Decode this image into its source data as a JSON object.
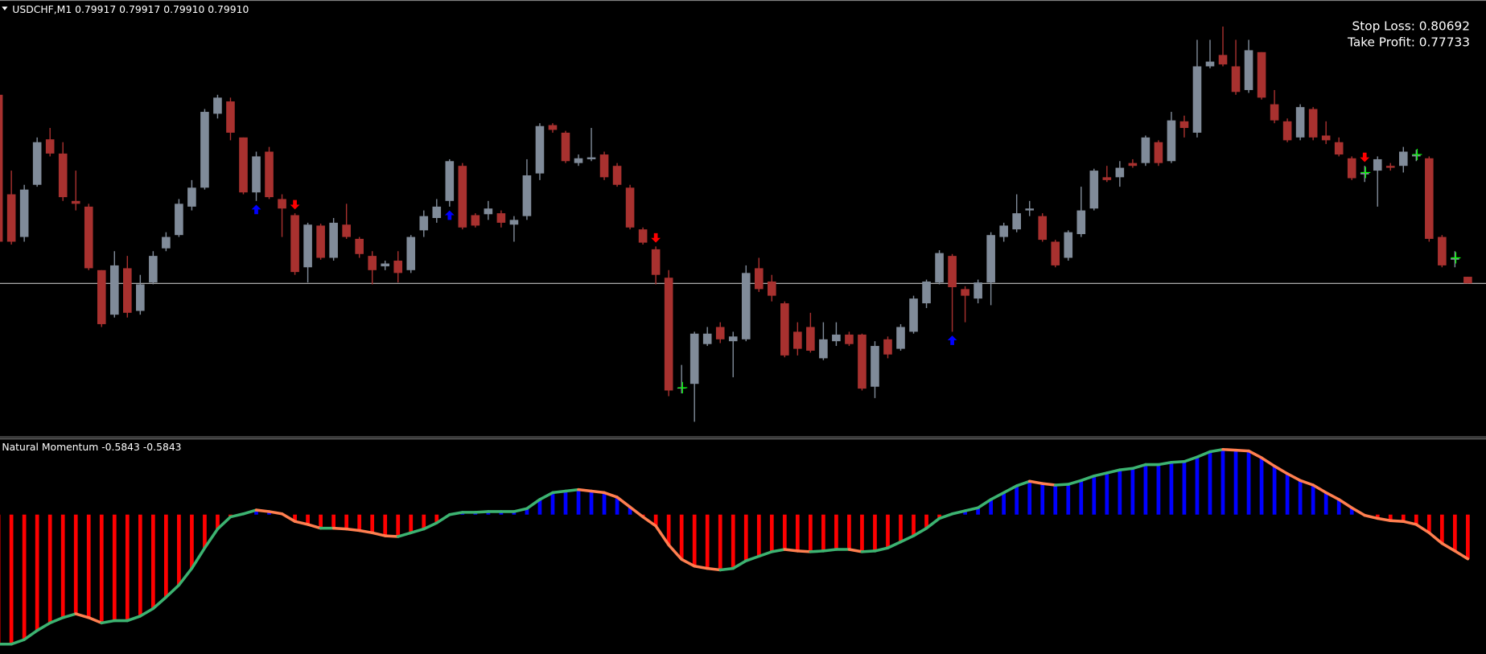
{
  "chart_data": [
    {
      "type": "candlestick",
      "title": "USDCHF,M1",
      "header_values": [
        "0.79917",
        "0.79917",
        "0.79910",
        "0.79910"
      ],
      "open": [
        0.80109,
        0.80004,
        0.79959,
        0.80014,
        0.80062,
        0.80047,
        0.79997,
        0.79991,
        0.79924,
        0.79877,
        0.79926,
        0.79881,
        0.79911,
        0.79947,
        0.79961,
        0.79991,
        0.80011,
        0.80089,
        0.80102,
        0.80064,
        0.80006,
        0.80049,
        0.79999,
        0.79982,
        0.79927,
        0.79971,
        0.79937,
        0.79972,
        0.79957,
        0.79939,
        0.79928,
        0.79934,
        0.79924,
        0.79966,
        0.79979,
        0.79997,
        0.80034,
        0.79982,
        0.79983,
        0.79984,
        0.79972,
        0.79981,
        0.80026,
        0.80077,
        0.80069,
        0.80037,
        0.80041,
        0.80046,
        0.80034,
        0.80011,
        0.79967,
        0.79946,
        0.79916,
        0.79799,
        0.79804,
        0.79846,
        0.79864,
        0.79849,
        0.79851,
        0.79926,
        0.79912,
        0.79889,
        0.79859,
        0.79864,
        0.79831,
        0.79849,
        0.79856,
        0.79856,
        0.79801,
        0.79851,
        0.79841,
        0.79859,
        0.79889,
        0.79911,
        0.79939,
        0.79904,
        0.79894,
        0.79911,
        0.79959,
        0.79967,
        0.79987,
        0.79981,
        0.79954,
        0.79937,
        0.79962,
        0.79989,
        0.80022,
        0.80022,
        0.80037,
        0.80037,
        0.80059,
        0.80039,
        0.80081,
        0.80069,
        0.80139,
        0.80151,
        0.80139,
        0.80114,
        0.80154,
        0.80099,
        0.80081,
        0.80064,
        0.80094,
        0.80066,
        0.80059,
        0.80042,
        0.80025,
        0.80029,
        0.80034,
        0.80034,
        0.80044,
        0.80042,
        0.79959,
        0.79935,
        0.79917
      ],
      "high": [
        0.80114,
        0.80029,
        0.80014,
        0.80064,
        0.80074,
        0.80059,
        0.80029,
        0.79994,
        0.79924,
        0.79944,
        0.79939,
        0.79919,
        0.79944,
        0.79964,
        0.79999,
        0.80019,
        0.80094,
        0.80109,
        0.80106,
        0.80064,
        0.80049,
        0.80054,
        0.80004,
        0.79984,
        0.79974,
        0.79973,
        0.79979,
        0.79994,
        0.79959,
        0.79944,
        0.79934,
        0.79944,
        0.79961,
        0.79987,
        0.79999,
        0.80041,
        0.80037,
        0.79984,
        0.79997,
        0.79987,
        0.79981,
        0.80041,
        0.80079,
        0.80079,
        0.80071,
        0.80046,
        0.80074,
        0.80049,
        0.80037,
        0.80014,
        0.79969,
        0.79949,
        0.79924,
        0.79824,
        0.79859,
        0.79864,
        0.79869,
        0.79859,
        0.79929,
        0.79937,
        0.79919,
        0.79891,
        0.79869,
        0.79879,
        0.79869,
        0.79869,
        0.79859,
        0.79857,
        0.79849,
        0.79854,
        0.79867,
        0.79897,
        0.79914,
        0.79945,
        0.79941,
        0.79907,
        0.79914,
        0.79964,
        0.79974,
        0.80004,
        0.79997,
        0.79984,
        0.79956,
        0.79966,
        0.80012,
        0.80031,
        0.80034,
        0.80039,
        0.80041,
        0.80066,
        0.80061,
        0.80091,
        0.80087,
        0.80167,
        0.80167,
        0.80181,
        0.80167,
        0.80167,
        0.80154,
        0.80114,
        0.80084,
        0.80099,
        0.80096,
        0.80081,
        0.80064,
        0.80044,
        0.80034,
        0.80044,
        0.80037,
        0.80054,
        0.80051,
        0.80044,
        0.79961,
        0.79944,
        0.79917
      ],
      "low": [
        0.79951,
        0.79951,
        0.79954,
        0.80012,
        0.80044,
        0.79997,
        0.79987,
        0.79924,
        0.79864,
        0.79874,
        0.79874,
        0.79877,
        0.79909,
        0.79944,
        0.79959,
        0.79987,
        0.80009,
        0.80084,
        0.80061,
        0.80004,
        0.79997,
        0.79999,
        0.79959,
        0.79919,
        0.79911,
        0.79935,
        0.79934,
        0.79957,
        0.79937,
        0.79909,
        0.79924,
        0.79911,
        0.79921,
        0.79959,
        0.79974,
        0.79991,
        0.79967,
        0.79969,
        0.79977,
        0.79969,
        0.79954,
        0.79977,
        0.80019,
        0.80069,
        0.80037,
        0.80034,
        0.80039,
        0.80019,
        0.80012,
        0.79967,
        0.79951,
        0.79909,
        0.79791,
        0.79794,
        0.79764,
        0.79844,
        0.79847,
        0.79811,
        0.79849,
        0.79901,
        0.79891,
        0.79832,
        0.79834,
        0.79837,
        0.79829,
        0.79844,
        0.79844,
        0.79797,
        0.79789,
        0.79831,
        0.79839,
        0.79857,
        0.79884,
        0.79909,
        0.79859,
        0.79869,
        0.79889,
        0.79887,
        0.79954,
        0.79964,
        0.79981,
        0.79954,
        0.79927,
        0.79934,
        0.79959,
        0.79987,
        0.80017,
        0.80012,
        0.80032,
        0.80034,
        0.80034,
        0.80037,
        0.80064,
        0.80064,
        0.80137,
        0.80139,
        0.80109,
        0.80111,
        0.80104,
        0.80079,
        0.80059,
        0.80061,
        0.80061,
        0.80057,
        0.80044,
        0.80019,
        0.80017,
        0.79991,
        0.80029,
        0.80027,
        0.80039,
        0.79954,
        0.79927,
        0.79927,
        0.7991
      ],
      "close": [
        0.79954,
        0.79954,
        0.80009,
        0.80059,
        0.80047,
        0.80001,
        0.79994,
        0.79926,
        0.79867,
        0.79929,
        0.79879,
        0.79909,
        0.79939,
        0.79959,
        0.79994,
        0.80011,
        0.80091,
        0.80106,
        0.80069,
        0.80006,
        0.80044,
        0.80001,
        0.79989,
        0.79922,
        0.79972,
        0.79937,
        0.79974,
        0.79959,
        0.79941,
        0.79924,
        0.79931,
        0.79921,
        0.79959,
        0.79981,
        0.79991,
        0.80039,
        0.79969,
        0.79971,
        0.79989,
        0.79974,
        0.79977,
        0.80024,
        0.80076,
        0.80072,
        0.80039,
        0.80042,
        0.80043,
        0.80022,
        0.80014,
        0.79969,
        0.79953,
        0.79919,
        0.79797,
        0.798,
        0.79857,
        0.79857,
        0.79851,
        0.79854,
        0.79921,
        0.79904,
        0.79897,
        0.79834,
        0.79841,
        0.79839,
        0.79851,
        0.79856,
        0.79846,
        0.79799,
        0.79844,
        0.79835,
        0.79864,
        0.79894,
        0.79912,
        0.79942,
        0.79906,
        0.79897,
        0.79911,
        0.79961,
        0.79971,
        0.79984,
        0.79989,
        0.79956,
        0.79929,
        0.79964,
        0.79987,
        0.80029,
        0.80019,
        0.80032,
        0.80034,
        0.80064,
        0.80037,
        0.80082,
        0.80074,
        0.80139,
        0.80144,
        0.80141,
        0.80112,
        0.80156,
        0.80106,
        0.80082,
        0.80061,
        0.80096,
        0.80064,
        0.80061,
        0.80046,
        0.80021,
        0.80027,
        0.80041,
        0.80032,
        0.80049,
        0.80046,
        0.79957,
        0.79929,
        0.79937,
        0.7991
      ],
      "ylim": [
        0.79749,
        0.80209
      ],
      "up_color": "#808b99",
      "down_color": "#a8312f",
      "price_line": 0.7991,
      "price_line_color": "#c0c0c0",
      "buy_arrows": [
        20,
        35,
        74
      ],
      "buy_color": "#0000ff",
      "sell_arrows": [
        23,
        51,
        106
      ],
      "sell_color": "#ff0000",
      "crosses": [
        53,
        106,
        110,
        113
      ],
      "cross_color": "#00ff00",
      "annotations": [
        "Stop Loss: 0.80692",
        "Take Profit: 0.77733"
      ],
      "annotation_colors": [
        "#ff2020",
        "#00ff00"
      ]
    },
    {
      "type": "bar",
      "title": "Natural Momentum",
      "header_values": [
        "-0.5843",
        "-0.5843"
      ],
      "values": [
        -1.71,
        -1.71,
        -1.65,
        -1.53,
        -1.43,
        -1.36,
        -1.31,
        -1.36,
        -1.43,
        -1.4,
        -1.4,
        -1.34,
        -1.24,
        -1.09,
        -0.93,
        -0.71,
        -0.44,
        -0.19,
        -0.03,
        0.01,
        0.06,
        0.04,
        0.01,
        -0.09,
        -0.13,
        -0.18,
        -0.18,
        -0.19,
        -0.21,
        -0.24,
        -0.28,
        -0.29,
        -0.24,
        -0.19,
        -0.11,
        0.0,
        0.03,
        0.03,
        0.04,
        0.04,
        0.04,
        0.08,
        0.2,
        0.29,
        0.31,
        0.33,
        0.31,
        0.29,
        0.23,
        0.1,
        -0.03,
        -0.15,
        -0.4,
        -0.59,
        -0.68,
        -0.71,
        -0.73,
        -0.71,
        -0.61,
        -0.55,
        -0.49,
        -0.46,
        -0.48,
        -0.49,
        -0.48,
        -0.46,
        -0.46,
        -0.49,
        -0.48,
        -0.44,
        -0.36,
        -0.28,
        -0.18,
        -0.05,
        0.01,
        0.05,
        0.09,
        0.2,
        0.29,
        0.38,
        0.44,
        0.41,
        0.39,
        0.4,
        0.45,
        0.51,
        0.55,
        0.59,
        0.61,
        0.66,
        0.66,
        0.69,
        0.7,
        0.76,
        0.83,
        0.86,
        0.85,
        0.84,
        0.75,
        0.64,
        0.54,
        0.45,
        0.39,
        0.29,
        0.2,
        0.09,
        -0.01,
        -0.05,
        -0.08,
        -0.09,
        -0.13,
        -0.24,
        -0.38,
        -0.48,
        -0.5843
      ],
      "ylim": [
        -1.84,
        1.0
      ],
      "positive_color": "#0000ff",
      "negative_color": "#ff0000",
      "line_rising_color": "#3cb371",
      "line_falling_color": "#ff7f50"
    }
  ]
}
